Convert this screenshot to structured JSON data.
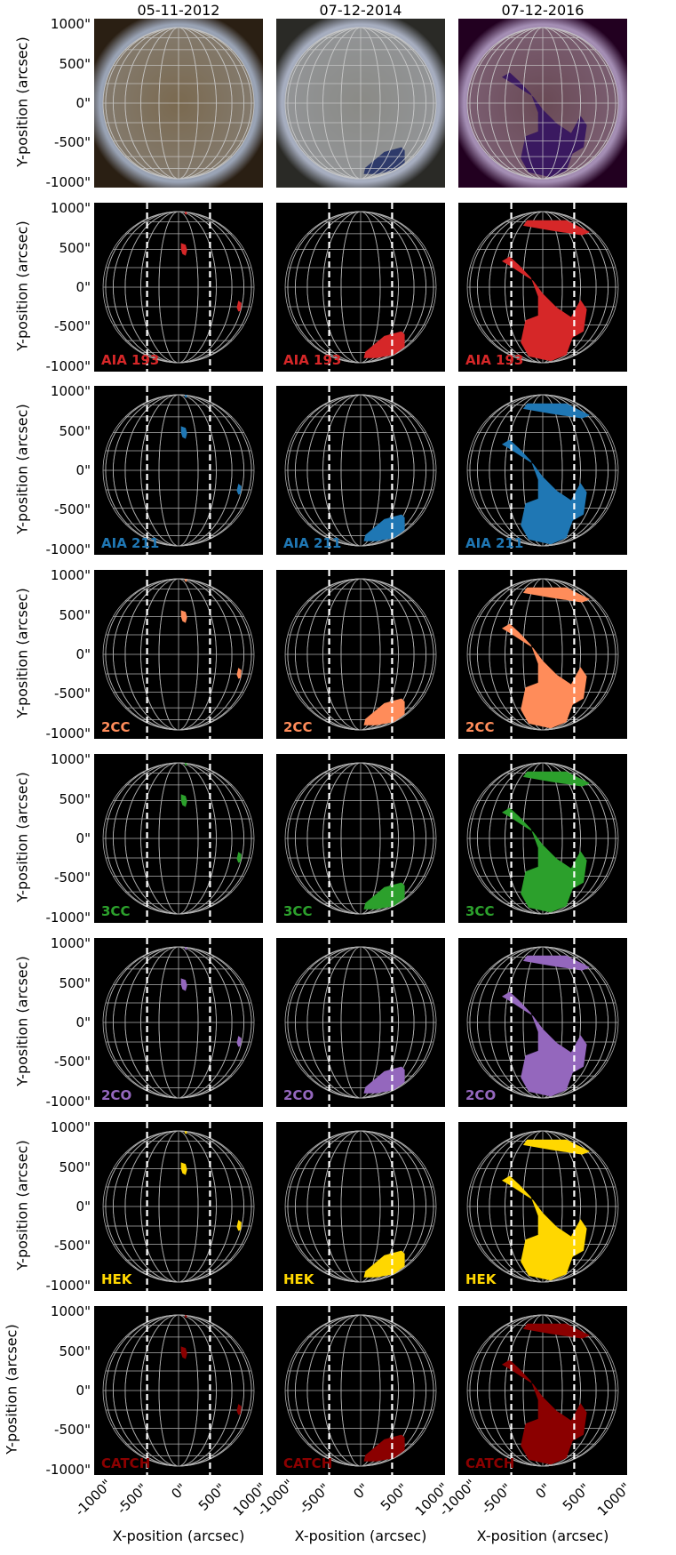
{
  "figure": {
    "column_titles": [
      "05-11-2012",
      "07-12-2014",
      "07-12-2016"
    ],
    "y_axis_label": "Y-position (arcsec)",
    "x_axis_label": "X-position (arcsec)",
    "y_tick_labels": [
      "1000\"",
      "500\"",
      "0\"",
      "-500\"",
      "-1000\""
    ],
    "x_tick_labels": [
      "-1000\"",
      "-500\"",
      "0\"",
      "500\"",
      "1000\""
    ],
    "row_labels": [
      {
        "label": "",
        "color": ""
      },
      {
        "label": "AIA 193",
        "color": "#d62728"
      },
      {
        "label": "AIA 211",
        "color": "#1f77b4"
      },
      {
        "label": "2CC",
        "color": "#ff8c5a"
      },
      {
        "label": "3CC",
        "color": "#2ca02c"
      },
      {
        "label": "2CO",
        "color": "#9467bd"
      },
      {
        "label": "HEK",
        "color": "#ffd700"
      },
      {
        "label": "CATCH",
        "color": "#8b0000"
      }
    ]
  }
}
